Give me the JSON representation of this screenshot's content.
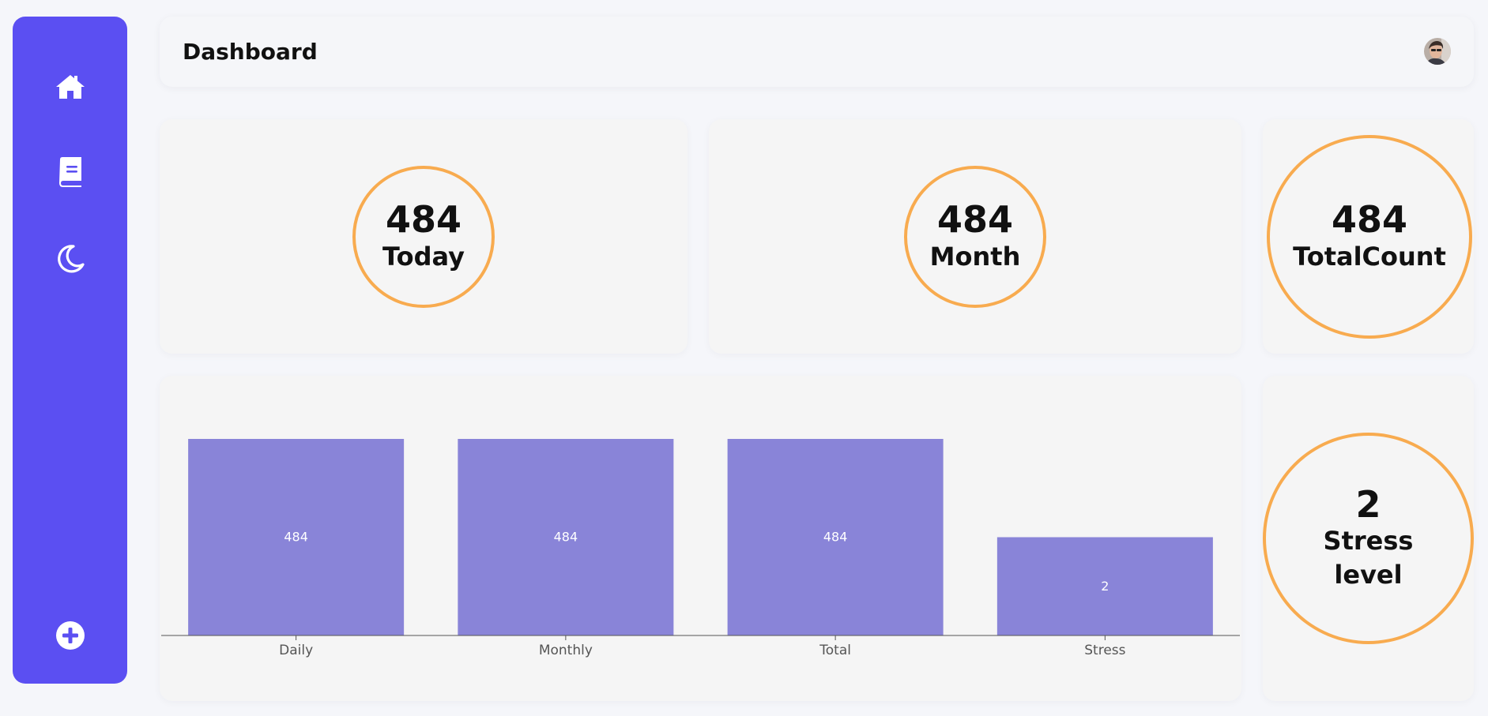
{
  "sidebar": {
    "items": [
      {
        "icon": "home-icon"
      },
      {
        "icon": "book-icon"
      },
      {
        "icon": "moon-icon"
      },
      {
        "icon": "plus-circle-icon"
      }
    ]
  },
  "header": {
    "title": "Dashboard",
    "avatar": "user-avatar"
  },
  "stats": {
    "today": {
      "value": "484",
      "label": "Today"
    },
    "month": {
      "value": "484",
      "label": "Month"
    },
    "total": {
      "value": "484",
      "label": "TotalCount"
    },
    "stress": {
      "value": "2",
      "label_line1": "Stress",
      "label_line2": "level"
    }
  },
  "colors": {
    "sidebar": "#5b4ff2",
    "ring": "#f8ab4f",
    "bar": "#8984d8"
  },
  "chart_data": {
    "type": "bar",
    "categories": [
      "Daily",
      "Monthly",
      "Total",
      "Stress"
    ],
    "values": [
      484,
      484,
      484,
      2
    ],
    "data_labels": [
      "484",
      "484",
      "484",
      "2"
    ],
    "title": "",
    "xlabel": "",
    "ylabel": ""
  }
}
